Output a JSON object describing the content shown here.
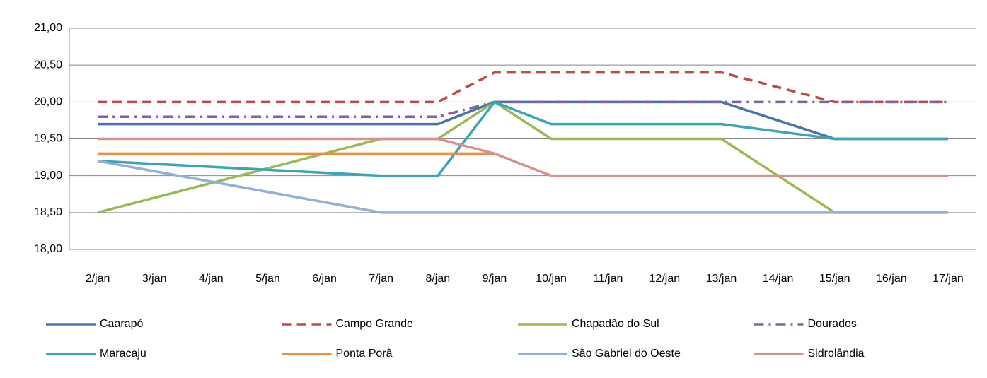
{
  "chart_data": {
    "type": "line",
    "categories": [
      "2/jan",
      "3/jan",
      "4/jan",
      "5/jan",
      "6/jan",
      "7/jan",
      "8/jan",
      "9/jan",
      "10/jan",
      "11/jan",
      "12/jan",
      "13/jan",
      "14/jan",
      "15/jan",
      "16/jan",
      "17/jan"
    ],
    "series": [
      {
        "name": "Caarapó",
        "color": "#4a72b0",
        "dash": "solid",
        "values": [
          19.7,
          19.7,
          19.7,
          19.7,
          19.7,
          19.7,
          19.7,
          20.0,
          20.0,
          20.0,
          20.0,
          20.0,
          19.75,
          19.5,
          19.5,
          19.5
        ]
      },
      {
        "name": "Campo Grande",
        "color": "#be4b48",
        "dash": "dashed",
        "values": [
          20.0,
          20.0,
          20.0,
          20.0,
          20.0,
          20.0,
          20.0,
          20.4,
          20.4,
          20.4,
          20.4,
          20.4,
          20.2,
          20.0,
          20.0,
          20.0
        ]
      },
      {
        "name": "Chapadão do Sul",
        "color": "#98b954",
        "dash": "solid",
        "values": [
          18.5,
          18.7,
          18.9,
          19.1,
          19.3,
          19.5,
          19.5,
          20.0,
          19.5,
          19.5,
          19.5,
          19.5,
          19.0,
          18.5,
          18.5,
          18.5
        ]
      },
      {
        "name": "Dourados",
        "color": "#7e62a1",
        "dash": "dashdot",
        "values": [
          19.8,
          19.8,
          19.8,
          19.8,
          19.8,
          19.8,
          19.8,
          20.0,
          20.0,
          20.0,
          20.0,
          20.0,
          20.0,
          20.0,
          20.0,
          20.0
        ]
      },
      {
        "name": "Maracaju",
        "color": "#3ca3b8",
        "dash": "solid",
        "values": [
          19.2,
          19.16,
          19.12,
          19.08,
          19.04,
          19.0,
          19.0,
          20.0,
          19.7,
          19.7,
          19.7,
          19.7,
          19.6,
          19.5,
          19.5,
          19.5
        ]
      },
      {
        "name": "Ponta Porã",
        "color": "#f08c3c",
        "dash": "solid",
        "values": [
          19.3,
          19.3,
          19.3,
          19.3,
          19.3,
          19.3,
          19.3,
          19.3,
          null,
          null,
          null,
          null,
          null,
          null,
          null,
          null
        ]
      },
      {
        "name": "São Gabriel do Oeste",
        "color": "#95b0d6",
        "dash": "solid",
        "values": [
          19.2,
          19.06,
          18.92,
          18.78,
          18.64,
          18.5,
          18.5,
          18.5,
          18.5,
          18.5,
          18.5,
          18.5,
          18.5,
          18.5,
          18.5,
          18.5
        ]
      },
      {
        "name": "Sidrolândia",
        "color": "#d7928f",
        "dash": "solid",
        "values": [
          19.5,
          19.5,
          19.5,
          19.5,
          19.5,
          19.5,
          19.5,
          19.3,
          19.0,
          19.0,
          19.0,
          19.0,
          19.0,
          19.0,
          19.0,
          19.0
        ]
      }
    ],
    "ylim": [
      18,
      21
    ],
    "yticks": [
      {
        "value": 18,
        "label": "18,00"
      },
      {
        "value": 18.5,
        "label": "18,50"
      },
      {
        "value": 19,
        "label": "19,00"
      },
      {
        "value": 19.5,
        "label": "19,50"
      },
      {
        "value": 20,
        "label": "20,00"
      },
      {
        "value": 20.5,
        "label": "20,50"
      },
      {
        "value": 21,
        "label": "21,00"
      }
    ],
    "grid": true,
    "legend": "bottom"
  }
}
